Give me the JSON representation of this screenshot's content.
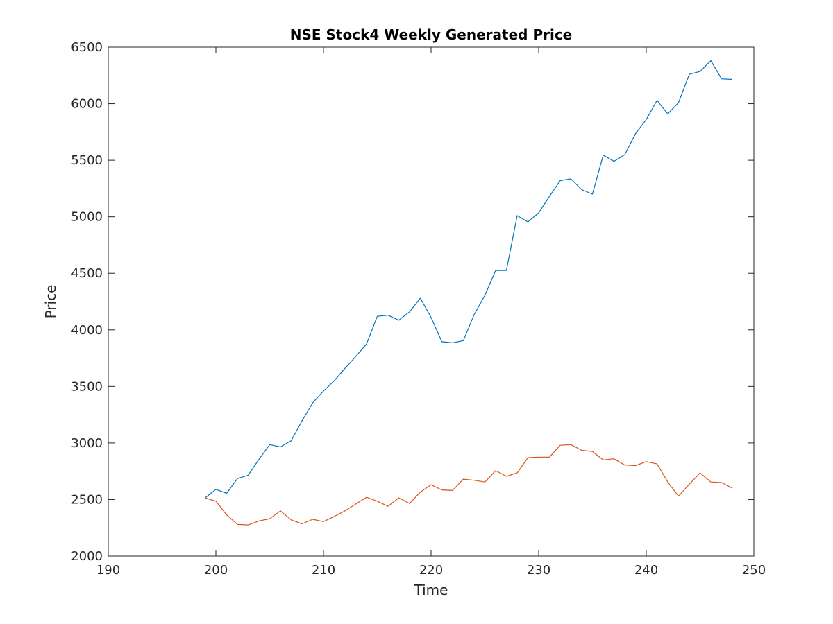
{
  "chart_data": {
    "type": "line",
    "title": "NSE Stock4 Weekly Generated Price",
    "xlabel": "Time",
    "ylabel": "Price",
    "xlim": [
      190,
      250
    ],
    "ylim": [
      2000,
      6500
    ],
    "xticks": [
      190,
      200,
      210,
      220,
      230,
      240,
      250
    ],
    "yticks": [
      2000,
      2500,
      3000,
      3500,
      4000,
      4500,
      5000,
      5500,
      6000,
      6500
    ],
    "grid": false,
    "x": [
      199,
      200,
      201,
      202,
      203,
      204,
      205,
      206,
      207,
      208,
      209,
      210,
      211,
      212,
      213,
      214,
      215,
      216,
      217,
      218,
      219,
      220,
      221,
      222,
      223,
      224,
      225,
      226,
      227,
      228,
      229,
      230,
      231,
      232,
      233,
      234,
      235,
      236,
      237,
      238,
      239,
      240,
      241,
      242,
      243,
      244,
      245,
      246,
      247,
      248
    ],
    "series": [
      {
        "color": "#0072bd",
        "values": [
          2515,
          2590,
          2555,
          2685,
          2715,
          2855,
          2985,
          2965,
          3020,
          3195,
          3355,
          3460,
          3550,
          3660,
          3765,
          3875,
          4120,
          4130,
          4085,
          4160,
          4280,
          4110,
          3895,
          3885,
          3905,
          4135,
          4305,
          4525,
          4525,
          5010,
          4955,
          5035,
          5180,
          5320,
          5335,
          5240,
          5200,
          5545,
          5490,
          5550,
          5735,
          5860,
          6030,
          5910,
          6010,
          6260,
          6285,
          6380,
          6220,
          6215
        ]
      },
      {
        "color": "#d95319",
        "values": [
          2515,
          2485,
          2365,
          2280,
          2275,
          2310,
          2330,
          2400,
          2320,
          2285,
          2325,
          2305,
          2350,
          2400,
          2460,
          2520,
          2485,
          2440,
          2515,
          2465,
          2565,
          2630,
          2585,
          2580,
          2680,
          2670,
          2655,
          2755,
          2705,
          2735,
          2870,
          2875,
          2875,
          2980,
          2985,
          2935,
          2925,
          2850,
          2860,
          2805,
          2800,
          2835,
          2815,
          2655,
          2530,
          2635,
          2735,
          2655,
          2650,
          2600
        ]
      }
    ]
  }
}
